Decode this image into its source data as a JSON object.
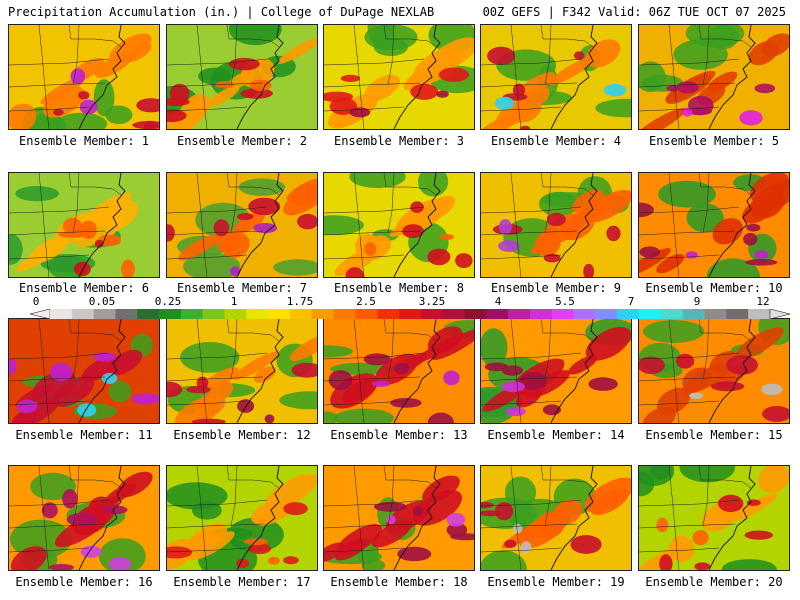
{
  "header": {
    "title": "Precipitation Accumulation (in.) | College of DuPage NEXLAB",
    "run_info": "00Z GEFS | F342 Valid: 06Z TUE OCT 07 2025"
  },
  "members": [
    {
      "label": "Ensemble Member: 1",
      "base": "#f2c400",
      "band": "#ff7a00",
      "core": "#c8102e",
      "extreme": "#c020d0",
      "green": "#3aa020"
    },
    {
      "label": "Ensemble Member: 2",
      "base": "#9acd32",
      "band": "#ff9a00",
      "core": "#d01020",
      "extreme": "#ff6000",
      "green": "#1e8f1e"
    },
    {
      "label": "Ensemble Member: 3",
      "base": "#e6d800",
      "band": "#ff9a00",
      "core": "#e01818",
      "extreme": "#a01040",
      "green": "#3aa020"
    },
    {
      "label": "Ensemble Member: 4",
      "base": "#e8c800",
      "band": "#ff7a00",
      "core": "#c8102e",
      "extreme": "#30d0f0",
      "green": "#3aa020"
    },
    {
      "label": "Ensemble Member: 5",
      "base": "#f0b000",
      "band": "#e04000",
      "core": "#b01060",
      "extreme": "#e020e0",
      "green": "#3aa020"
    },
    {
      "label": "Ensemble Member: 6",
      "base": "#9acd32",
      "band": "#ffb000",
      "core": "#ff6000",
      "extreme": "#d01020",
      "green": "#2a9a2a"
    },
    {
      "label": "Ensemble Member: 7",
      "base": "#f0b000",
      "band": "#ff6000",
      "core": "#c8102e",
      "extreme": "#b020c0",
      "green": "#4aa030"
    },
    {
      "label": "Ensemble Member: 8",
      "base": "#e6d800",
      "band": "#ff9a00",
      "core": "#d01020",
      "extreme": "#ff6000",
      "green": "#3aa020"
    },
    {
      "label": "Ensemble Member: 9",
      "base": "#f0c000",
      "band": "#ff6000",
      "core": "#c8102e",
      "extreme": "#b040d0",
      "green": "#3aa020"
    },
    {
      "label": "Ensemble Member: 10",
      "base": "#ff8c00",
      "band": "#e03000",
      "core": "#a01040",
      "extreme": "#c020d0",
      "green": "#2a9a2a"
    },
    {
      "label": "Ensemble Member: 11",
      "base": "#e04000",
      "band": "#c8102e",
      "core": "#c020d0",
      "extreme": "#30d0f0",
      "green": "#3aa020"
    },
    {
      "label": "Ensemble Member: 12",
      "base": "#f0c000",
      "band": "#ff7a00",
      "core": "#c8102e",
      "extreme": "#a01040",
      "green": "#3aa020"
    },
    {
      "label": "Ensemble Member: 13",
      "base": "#ff8c00",
      "band": "#d01020",
      "core": "#a01040",
      "extreme": "#c020d0",
      "green": "#3aa020"
    },
    {
      "label": "Ensemble Member: 14",
      "base": "#ff9a00",
      "band": "#d01020",
      "core": "#a01040",
      "extreme": "#d030e0",
      "green": "#2a9a2a"
    },
    {
      "label": "Ensemble Member: 15",
      "base": "#ff8c00",
      "band": "#e04000",
      "core": "#c8102e",
      "extreme": "#bdbdbd",
      "green": "#3aa020"
    },
    {
      "label": "Ensemble Member: 16",
      "base": "#ff9a00",
      "band": "#d01020",
      "core": "#b01060",
      "extreme": "#d040e0",
      "green": "#3aa020"
    },
    {
      "label": "Ensemble Member: 17",
      "base": "#b4d400",
      "band": "#ff9a00",
      "core": "#e01818",
      "extreme": "#ff6000",
      "green": "#1e8f1e"
    },
    {
      "label": "Ensemble Member: 18",
      "base": "#ff9a00",
      "band": "#d01020",
      "core": "#a01040",
      "extreme": "#d040e0",
      "green": "#3aa020"
    },
    {
      "label": "Ensemble Member: 19",
      "base": "#f0c000",
      "band": "#ff6000",
      "core": "#c8102e",
      "extreme": "#bdbdbd",
      "green": "#3aa020"
    },
    {
      "label": "Ensemble Member: 20",
      "base": "#b4d400",
      "band": "#ff9a00",
      "core": "#d01020",
      "extreme": "#ff6000",
      "green": "#1e8f1e"
    }
  ],
  "colorbar": {
    "ticks": [
      "0",
      "0.05",
      "0.25",
      "1",
      "1.75",
      "2.5",
      "3.25",
      "4",
      "5.5",
      "7",
      "9",
      "12"
    ],
    "tick_values": [
      0,
      0.05,
      0.25,
      1,
      1.75,
      2.5,
      3.25,
      4,
      5.5,
      7,
      9,
      12
    ],
    "colors": [
      "#e6e6e6",
      "#c8c8c8",
      "#9e9e9e",
      "#707070",
      "#2e6b2e",
      "#1e8f1e",
      "#3cb034",
      "#7ac61e",
      "#b4d400",
      "#e6e600",
      "#ffe000",
      "#ffbe00",
      "#ff9a00",
      "#ff7a00",
      "#ff5a00",
      "#f03000",
      "#e01818",
      "#c8102e",
      "#b01040",
      "#901030",
      "#a01060",
      "#c020a0",
      "#d030d0",
      "#e040f0",
      "#b070ff",
      "#8090ff",
      "#30d0f0",
      "#20f0f0",
      "#50d8c8",
      "#5ab4b4",
      "#8c8c8c",
      "#6e6e6e",
      "#bdbdbd"
    ]
  }
}
